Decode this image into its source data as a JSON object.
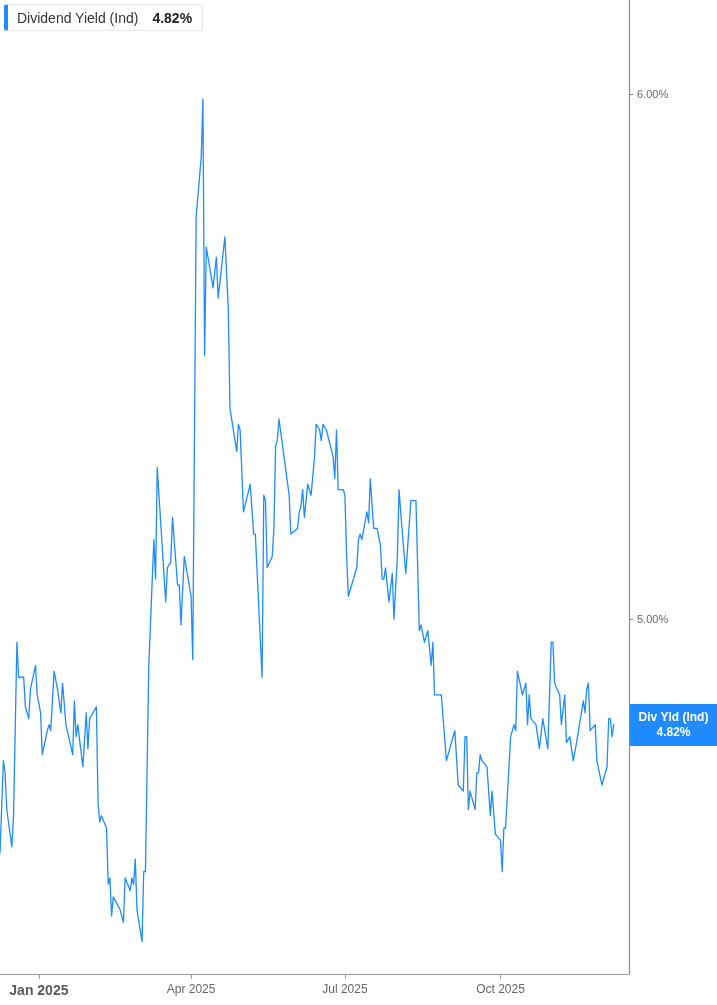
{
  "chart_data": {
    "type": "line",
    "title": "Dividend Yield (Ind)",
    "subtitle": "4.82%",
    "color": "#1f8bff",
    "log": true,
    "xlim": [
      "2024-12-09",
      "2025-12-16"
    ],
    "ylim": [
      4.42,
      6.2
    ],
    "xticks": [
      {
        "value": "2025-01",
        "label": "Jan 2025"
      },
      {
        "value": "2025-04",
        "label": "Apr 2025"
      },
      {
        "value": "2025-07",
        "label": "Jul 2025"
      },
      {
        "value": "2025-10",
        "label": "Oct 2025"
      }
    ],
    "yticks": [
      {
        "value": 5,
        "label": "5.00%"
      },
      {
        "value": 6,
        "label": "6.00%"
      }
    ],
    "annotations": [
      "Div Yld (Ind)\n4.82%"
    ],
    "x": [
      "2024-12-09",
      "2024-12-11",
      "2024-12-12",
      "2024-12-13",
      "2024-12-16",
      "2024-12-17",
      "2024-12-19",
      "2024-12-20",
      "2024-12-23",
      "2024-12-24",
      "2024-12-26",
      "2024-12-27",
      "2024-12-30",
      "2024-12-31",
      "2025-01-02",
      "2025-01-03",
      "2025-01-06",
      "2025-01-07",
      "2025-01-08",
      "2025-01-10",
      "2025-01-12",
      "2025-01-14",
      "2025-01-15",
      "2025-01-17",
      "2025-01-21",
      "2025-01-22",
      "2025-01-23",
      "2025-01-24",
      "2025-01-27",
      "2025-01-29",
      "2025-01-30",
      "2025-01-31",
      "2025-02-04",
      "2025-02-05",
      "2025-02-06",
      "2025-02-07",
      "2025-02-10",
      "2025-02-11",
      "2025-02-12",
      "2025-02-13",
      "2025-02-14",
      "2025-02-18",
      "2025-02-20",
      "2025-02-21",
      "2025-02-24",
      "2025-02-25",
      "2025-02-26",
      "2025-02-27",
      "2025-02-28",
      "2025-03-03",
      "2025-03-04",
      "2025-03-05",
      "2025-03-07",
      "2025-03-10",
      "2025-03-11",
      "2025-03-12",
      "2025-03-17",
      "2025-03-18",
      "2025-03-20",
      "2025-03-21",
      "2025-03-24",
      "2025-03-25",
      "2025-03-26",
      "2025-03-28",
      "2025-04-01",
      "2025-04-02",
      "2025-04-04",
      "2025-04-07",
      "2025-04-08",
      "2025-04-09",
      "2025-04-10",
      "2025-04-14",
      "2025-04-16",
      "2025-04-17",
      "2025-04-21",
      "2025-04-23",
      "2025-04-24",
      "2025-04-28",
      "2025-04-29",
      "2025-04-30",
      "2025-05-02",
      "2025-05-06",
      "2025-05-08",
      "2025-05-09",
      "2025-05-13",
      "2025-05-14",
      "2025-05-15",
      "2025-05-16",
      "2025-05-19",
      "2025-05-20",
      "2025-05-21",
      "2025-05-22",
      "2025-05-23",
      "2025-05-29",
      "2025-05-30",
      "2025-06-03",
      "2025-06-04",
      "2025-06-05",
      "2025-06-06",
      "2025-06-07",
      "2025-06-09",
      "2025-06-11",
      "2025-06-13",
      "2025-06-14",
      "2025-06-16",
      "2025-06-17",
      "2025-06-18",
      "2025-06-20",
      "2025-06-24",
      "2025-06-25",
      "2025-06-26",
      "2025-06-27",
      "2025-06-30",
      "2025-07-01",
      "2025-07-02",
      "2025-07-03",
      "2025-07-08",
      "2025-07-09",
      "2025-07-10",
      "2025-07-11",
      "2025-07-14",
      "2025-07-15",
      "2025-07-16",
      "2025-07-18",
      "2025-07-20",
      "2025-07-22",
      "2025-07-23",
      "2025-07-24",
      "2025-07-25",
      "2025-07-27",
      "2025-07-29",
      "2025-07-30",
      "2025-08-01",
      "2025-08-02",
      "2025-08-04",
      "2025-08-06",
      "2025-08-09",
      "2025-08-12",
      "2025-08-14",
      "2025-08-15",
      "2025-08-17",
      "2025-08-19",
      "2025-08-21",
      "2025-08-22",
      "2025-08-23",
      "2025-08-26",
      "2025-08-27",
      "2025-08-30",
      "2025-09-04",
      "2025-09-06",
      "2025-09-09",
      "2025-09-10",
      "2025-09-11",
      "2025-09-12",
      "2025-09-13",
      "2025-09-16",
      "2025-09-17",
      "2025-09-18",
      "2025-09-19",
      "2025-09-20",
      "2025-09-23",
      "2025-09-25",
      "2025-09-26",
      "2025-09-28",
      "2025-10-01",
      "2025-10-02",
      "2025-10-03",
      "2025-10-04",
      "2025-10-07",
      "2025-10-09",
      "2025-10-10",
      "2025-10-11",
      "2025-10-14",
      "2025-10-16",
      "2025-10-17",
      "2025-10-18",
      "2025-10-19",
      "2025-10-22",
      "2025-10-24",
      "2025-10-26",
      "2025-10-29",
      "2025-10-31",
      "2025-11-01",
      "2025-11-02",
      "2025-11-05",
      "2025-11-06",
      "2025-11-08",
      "2025-11-09",
      "2025-11-11",
      "2025-11-13",
      "2025-11-15",
      "2025-11-19",
      "2025-11-20",
      "2025-11-21",
      "2025-11-22",
      "2025-11-23",
      "2025-11-26",
      "2025-11-27",
      "2025-11-30",
      "2025-12-03",
      "2025-12-04",
      "2025-12-05",
      "2025-12-06",
      "2025-12-07"
    ],
    "values": [
      4.61,
      4.76,
      4.74,
      4.68,
      4.62,
      4.67,
      4.96,
      4.9,
      4.9,
      4.85,
      4.83,
      4.88,
      4.92,
      4.87,
      4.84,
      4.77,
      4.81,
      4.82,
      4.81,
      4.91,
      4.88,
      4.84,
      4.89,
      4.82,
      4.77,
      4.86,
      4.8,
      4.82,
      4.75,
      4.84,
      4.78,
      4.83,
      4.85,
      4.69,
      4.66,
      4.67,
      4.65,
      4.56,
      4.57,
      4.51,
      4.54,
      4.52,
      4.5,
      4.57,
      4.55,
      4.57,
      4.56,
      4.6,
      4.52,
      4.47,
      4.58,
      4.58,
      4.92,
      5.14,
      5.07,
      5.27,
      5.03,
      5.09,
      5.1,
      5.18,
      5.06,
      5.06,
      4.99,
      5.11,
      5.04,
      4.93,
      5.75,
      5.87,
      5.99,
      5.48,
      5.69,
      5.61,
      5.67,
      5.59,
      5.71,
      5.57,
      5.38,
      5.3,
      5.35,
      5.34,
      5.19,
      5.24,
      5.15,
      5.15,
      4.9,
      5.22,
      5.21,
      5.09,
      5.11,
      5.16,
      5.31,
      5.32,
      5.36,
      5.22,
      5.15,
      5.16,
      5.19,
      5.2,
      5.23,
      5.18,
      5.24,
      5.22,
      5.29,
      5.35,
      5.34,
      5.32,
      5.35,
      5.34,
      5.29,
      5.25,
      5.34,
      5.23,
      5.23,
      5.22,
      5.11,
      5.04,
      5.09,
      5.14,
      5.15,
      5.14,
      5.19,
      5.17,
      5.25,
      5.16,
      5.16,
      5.13,
      5.07,
      5.07,
      5.09,
      5.03,
      5.08,
      5.0,
      5.11,
      5.23,
      5.15,
      5.08,
      5.21,
      5.21,
      4.98,
      4.99,
      4.96,
      4.98,
      4.92,
      4.96,
      4.87,
      4.87,
      4.87,
      4.76,
      4.81,
      4.72,
      4.71,
      4.8,
      4.8,
      4.68,
      4.71,
      4.68,
      4.74,
      4.74,
      4.77,
      4.76,
      4.75,
      4.67,
      4.71,
      4.64,
      4.63,
      4.58,
      4.65,
      4.65,
      4.8,
      4.82,
      4.81,
      4.91,
      4.87,
      4.89,
      4.82,
      4.87,
      4.83,
      4.82,
      4.78,
      4.83,
      4.78,
      4.96,
      4.96,
      4.89,
      4.87,
      4.82,
      4.87,
      4.79,
      4.8,
      4.76,
      4.79,
      4.86,
      4.84,
      4.88,
      4.89,
      4.81,
      4.82,
      4.76,
      4.72,
      4.75,
      4.83,
      4.83,
      4.8,
      4.82
    ]
  }
}
